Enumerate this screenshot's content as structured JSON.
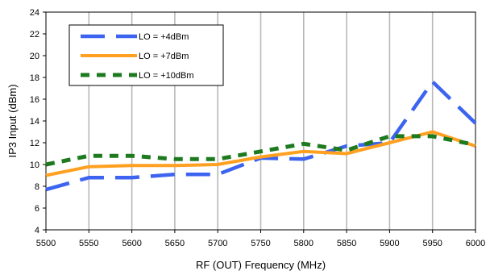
{
  "chart_data": {
    "type": "line",
    "title": "",
    "xlabel": "RF (OUT) Frequency (MHz)",
    "ylabel": "IP3 Input (dBm)",
    "x": [
      5500,
      5550,
      5600,
      5650,
      5700,
      5750,
      5800,
      5850,
      5900,
      5950,
      6000
    ],
    "xlim": [
      5500,
      6000
    ],
    "ylim": [
      4,
      24
    ],
    "xticks": [
      "5500",
      "5550",
      "5600",
      "5650",
      "5700",
      "5750",
      "5800",
      "5850",
      "5900",
      "5950",
      "6000"
    ],
    "yticks": [
      "4",
      "6",
      "8",
      "10",
      "12",
      "14",
      "16",
      "18",
      "20",
      "22",
      "24"
    ],
    "grid": "vertical",
    "legend_position": "top-left",
    "series": [
      {
        "name": "LO = +4dBm",
        "color": "#3c64f0",
        "style": "long-dash",
        "values": [
          7.7,
          8.8,
          8.8,
          9.1,
          9.1,
          10.6,
          10.5,
          11.7,
          12.0,
          17.6,
          13.8
        ]
      },
      {
        "name": "LO = +7dBm",
        "color": "#ffa020",
        "style": "solid",
        "values": [
          9.0,
          9.8,
          9.9,
          9.9,
          10.0,
          10.7,
          11.2,
          11.0,
          12.0,
          13.0,
          11.7
        ]
      },
      {
        "name": "LO = +10dBm",
        "color": "#1e7a1e",
        "style": "short-dash",
        "values": [
          10.0,
          10.8,
          10.8,
          10.5,
          10.5,
          11.2,
          11.9,
          11.3,
          12.6,
          12.6,
          11.8
        ]
      }
    ]
  }
}
